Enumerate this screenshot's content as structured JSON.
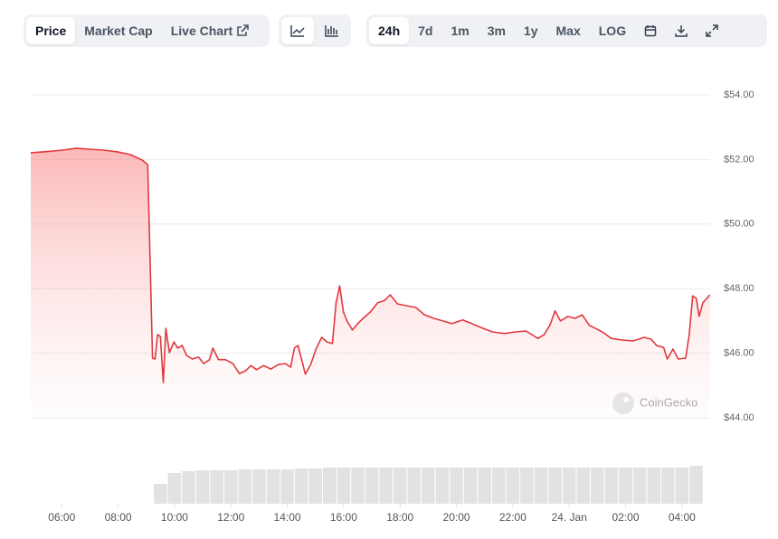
{
  "toolbar": {
    "views": [
      "Price",
      "Market Cap",
      "Live Chart"
    ],
    "ranges": [
      "24h",
      "7d",
      "1m",
      "3m",
      "1y",
      "Max",
      "LOG"
    ]
  },
  "watermark": "CoinGecko",
  "chart_data": {
    "type": "line",
    "series": [
      {
        "name": "Price",
        "color": "#e0393e",
        "x": [
          4.9,
          5.39,
          6.04,
          6.5,
          6.98,
          7.48,
          7.96,
          8.44,
          8.86,
          9.05,
          9.22,
          9.31,
          9.4,
          9.5,
          9.6,
          9.69,
          9.82,
          9.98,
          10.11,
          10.27,
          10.43,
          10.63,
          10.85,
          11.04,
          11.24,
          11.36,
          11.56,
          11.81,
          12.07,
          12.3,
          12.52,
          12.71,
          12.91,
          13.16,
          13.42,
          13.68,
          13.93,
          14.12,
          14.25,
          14.38,
          14.51,
          14.64,
          14.83,
          15.03,
          15.22,
          15.41,
          15.6,
          15.73,
          15.86,
          15.99,
          16.12,
          16.31,
          16.5,
          16.69,
          16.95,
          17.2,
          17.46,
          17.65,
          17.91,
          18.23,
          18.55,
          18.87,
          19.2,
          19.52,
          19.84,
          20.22,
          20.54,
          20.86,
          21.28,
          21.7,
          22.09,
          22.47,
          22.89,
          23.11,
          23.31,
          23.5,
          23.69,
          23.95,
          24.21,
          24.46,
          24.72,
          24.98,
          25.23,
          25.49,
          25.88,
          26.26,
          26.65,
          26.9,
          27.1,
          27.35,
          27.48,
          27.68,
          27.87,
          28.13,
          28.26,
          28.38,
          28.51,
          28.61,
          28.74,
          28.99
        ],
        "values": [
          52.21,
          52.24,
          52.29,
          52.35,
          52.32,
          52.29,
          52.24,
          52.15,
          51.98,
          51.84,
          45.85,
          45.82,
          46.58,
          46.52,
          45.09,
          46.77,
          46.02,
          46.35,
          46.16,
          46.24,
          45.93,
          45.82,
          45.88,
          45.68,
          45.8,
          46.16,
          45.8,
          45.8,
          45.68,
          45.37,
          45.46,
          45.62,
          45.49,
          45.62,
          45.51,
          45.65,
          45.68,
          45.57,
          46.16,
          46.24,
          45.8,
          45.35,
          45.65,
          46.16,
          46.49,
          46.35,
          46.3,
          47.56,
          48.09,
          47.28,
          47.0,
          46.72,
          46.92,
          47.08,
          47.28,
          47.56,
          47.64,
          47.81,
          47.53,
          47.47,
          47.42,
          47.19,
          47.08,
          47.0,
          46.92,
          47.03,
          46.92,
          46.8,
          46.66,
          46.61,
          46.66,
          46.69,
          46.46,
          46.58,
          46.86,
          47.31,
          47.0,
          47.14,
          47.08,
          47.19,
          46.86,
          46.75,
          46.63,
          46.46,
          46.41,
          46.38,
          46.49,
          46.44,
          46.24,
          46.18,
          45.82,
          46.13,
          45.82,
          45.85,
          46.58,
          47.78,
          47.7,
          47.14,
          47.56,
          47.81
        ]
      }
    ],
    "volume": {
      "color": "#e2e2e2",
      "x": [
        9.5,
        10,
        10.5,
        11,
        11.5,
        12,
        12.5,
        13,
        13.5,
        14,
        14.5,
        15,
        15.5,
        16,
        16.5,
        17,
        17.5,
        18,
        18.5,
        19,
        19.5,
        20,
        20.5,
        21,
        21.5,
        22,
        22.5,
        23,
        23.5,
        24,
        24.5,
        25,
        25.5,
        26,
        26.5,
        27,
        27.5,
        28,
        28.5
      ],
      "values": [
        22,
        34,
        36,
        37,
        37,
        37,
        38,
        38,
        38,
        38,
        39,
        39,
        40,
        40,
        40,
        40,
        40,
        40,
        40,
        40,
        40,
        40,
        40,
        40,
        40,
        40,
        40,
        40,
        40,
        40,
        40,
        40,
        40,
        40,
        40,
        40,
        40,
        40,
        42
      ],
      "ylim": [
        0,
        50
      ]
    },
    "xlim": [
      4.9,
      29.0
    ],
    "xticks": [
      {
        "value": 6,
        "label": "06:00"
      },
      {
        "value": 8,
        "label": "08:00"
      },
      {
        "value": 10,
        "label": "10:00"
      },
      {
        "value": 12,
        "label": "12:00"
      },
      {
        "value": 14,
        "label": "14:00"
      },
      {
        "value": 16,
        "label": "16:00"
      },
      {
        "value": 18,
        "label": "18:00"
      },
      {
        "value": 20,
        "label": "20:00"
      },
      {
        "value": 22,
        "label": "22:00"
      },
      {
        "value": 24,
        "label": "24. Jan"
      },
      {
        "value": 26,
        "label": "02:00"
      },
      {
        "value": 28,
        "label": "04:00"
      }
    ],
    "ylim": [
      44,
      54
    ],
    "yticks": [
      {
        "value": 44,
        "label": "$44.00"
      },
      {
        "value": 46,
        "label": "$46.00"
      },
      {
        "value": 48,
        "label": "$48.00"
      },
      {
        "value": 50,
        "label": "$50.00"
      },
      {
        "value": 52,
        "label": "$52.00"
      },
      {
        "value": 54,
        "label": "$54.00"
      }
    ],
    "grid": true
  }
}
